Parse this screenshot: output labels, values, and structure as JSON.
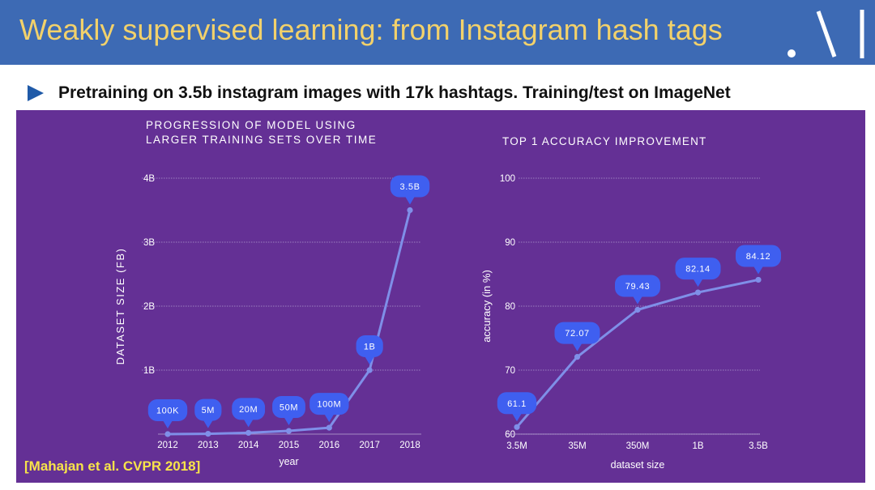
{
  "slide": {
    "title": "Weakly supervised learning: from Instagram hash tags",
    "bullet": "Pretraining on 3.5b instagram images with 17k hashtags. Training/test on ImageNet",
    "citation": "[Mahajan et al. CVPR 2018]"
  },
  "colors": {
    "header_bg": "#3d6ab4",
    "title_text": "#f2d16b",
    "panel_bg": "#643095",
    "line": "#7f8fe8",
    "label_bubble": "#3f5ff0",
    "citation_text": "#f7e34a"
  },
  "chart_data": [
    {
      "type": "line",
      "title": "PROGRESSION OF MODEL USING LARGER TRAINING SETS OVER TIME",
      "title_lines": [
        "PROGRESSION OF MODEL USING",
        "LARGER TRAINING SETS OVER TIME"
      ],
      "xlabel": "year",
      "ylabel": "DATASET SIZE (FB)",
      "categories": [
        "2012",
        "2013",
        "2014",
        "2015",
        "2016",
        "2017",
        "2018"
      ],
      "values": [
        0.0001,
        0.005,
        0.02,
        0.05,
        0.1,
        1.0,
        3.5
      ],
      "data_labels": [
        "100K",
        "5M",
        "20M",
        "50M",
        "100M",
        "1B",
        "3.5B"
      ],
      "yticks": [
        1,
        2,
        3,
        4
      ],
      "ytick_labels": [
        "1B",
        "2B",
        "3B",
        "4B"
      ],
      "ylim": [
        0,
        4
      ],
      "grid": true
    },
    {
      "type": "line",
      "title": "TOP 1 ACCURACY IMPROVEMENT",
      "xlabel": "dataset size",
      "ylabel": "accuracy (in %)",
      "categories": [
        "3.5M",
        "35M",
        "350M",
        "1B",
        "3.5B"
      ],
      "values": [
        61.1,
        72.07,
        79.43,
        82.14,
        84.12
      ],
      "data_labels": [
        "61.1",
        "72.07",
        "79.43",
        "82.14",
        "84.12"
      ],
      "yticks": [
        60,
        70,
        80,
        90,
        100
      ],
      "ytick_labels": [
        "60",
        "70",
        "80",
        "90",
        "100"
      ],
      "ylim": [
        60,
        100
      ],
      "grid": true
    }
  ]
}
